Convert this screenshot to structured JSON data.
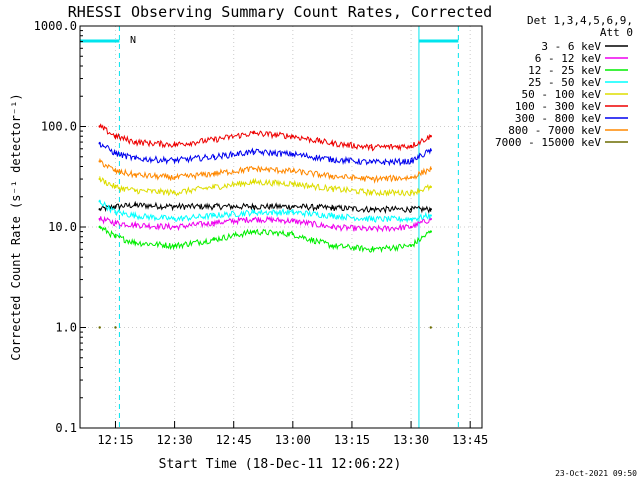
{
  "chart_data": {
    "type": "line",
    "title": "RHESSI Observing Summary Count Rates, Corrected",
    "xlabel": "Start Time (18-Dec-11 12:06:22)",
    "ylabel": "Corrected Count Rate (s⁻¹ detector⁻¹)",
    "y_scale": "log",
    "ylim": [
      0.1,
      1000
    ],
    "y_ticks": [
      0.1,
      1,
      10,
      100,
      1000
    ],
    "y_tick_labels": [
      "0.1",
      "1.0",
      "10.0",
      "100.0",
      "1000.0"
    ],
    "xlim": [
      "12:06",
      "13:48"
    ],
    "x_ticks": [
      "12:15",
      "12:30",
      "12:45",
      "13:00",
      "13:15",
      "13:30",
      "13:45"
    ],
    "grid": true,
    "legend_position": "top-right",
    "legend_header": [
      "Det 1,3,4,5,6,9,",
      "Att 0"
    ],
    "footer_timestamp": "23-Oct-2021 09:50",
    "flag_label": "N",
    "flags": {
      "saa_color": "#00e5ee",
      "saa_intervals": [
        [
          "12:06",
          "12:16"
        ],
        [
          "13:32",
          "13:42"
        ]
      ],
      "night_lines": [
        "12:16",
        "13:42"
      ]
    },
    "series": [
      {
        "name": "3 - 6 keV",
        "color": "#000000",
        "x": [
          "12:11",
          "12:15",
          "12:20",
          "12:30",
          "12:40",
          "12:50",
          "13:00",
          "13:10",
          "13:20",
          "13:30",
          "13:35"
        ],
        "y": [
          15,
          16,
          16.5,
          16,
          16,
          16,
          16,
          15.5,
          15,
          15,
          15
        ]
      },
      {
        "name": "6 - 12 keV",
        "color": "#ee00ee",
        "x": [
          "12:11",
          "12:15",
          "12:20",
          "12:30",
          "12:40",
          "12:50",
          "13:00",
          "13:10",
          "13:20",
          "13:30",
          "13:35"
        ],
        "y": [
          12,
          11,
          10.5,
          10,
          11,
          12,
          11.5,
          10,
          9.5,
          10,
          12
        ]
      },
      {
        "name": "12 - 25 keV",
        "color": "#00ee00",
        "x": [
          "12:11",
          "12:15",
          "12:20",
          "12:30",
          "12:40",
          "12:50",
          "13:00",
          "13:10",
          "13:20",
          "13:30",
          "13:35"
        ],
        "y": [
          10,
          8,
          7,
          6.5,
          7.5,
          9,
          8.5,
          6.5,
          6,
          6.5,
          9
        ]
      },
      {
        "name": "25 - 50 keV",
        "color": "#00ffff",
        "x": [
          "12:11",
          "12:15",
          "12:20",
          "12:30",
          "12:40",
          "12:50",
          "13:00",
          "13:10",
          "13:20",
          "13:30",
          "13:35"
        ],
        "y": [
          18,
          14,
          13,
          12,
          13,
          14,
          14,
          13,
          12,
          12,
          13
        ]
      },
      {
        "name": "50 - 100 keV",
        "color": "#dddd00",
        "x": [
          "12:11",
          "12:15",
          "12:20",
          "12:30",
          "12:40",
          "12:50",
          "13:00",
          "13:10",
          "13:20",
          "13:30",
          "13:35"
        ],
        "y": [
          30,
          25,
          23,
          22,
          25,
          28,
          27,
          24,
          22,
          22,
          25
        ]
      },
      {
        "name": "100 - 300 keV",
        "color": "#ee0000",
        "x": [
          "12:11",
          "12:15",
          "12:20",
          "12:30",
          "12:40",
          "12:50",
          "13:00",
          "13:10",
          "13:20",
          "13:30",
          "13:35"
        ],
        "y": [
          100,
          80,
          70,
          66,
          74,
          86,
          80,
          68,
          62,
          64,
          80
        ]
      },
      {
        "name": "300 - 800 keV",
        "color": "#0000ee",
        "x": [
          "12:11",
          "12:15",
          "12:20",
          "12:30",
          "12:40",
          "12:50",
          "13:00",
          "13:10",
          "13:20",
          "13:30",
          "13:35"
        ],
        "y": [
          68,
          54,
          48,
          46,
          50,
          56,
          53,
          47,
          44,
          45,
          58
        ]
      },
      {
        "name": "800 - 7000 keV",
        "color": "#ff8800",
        "x": [
          "12:11",
          "12:15",
          "12:20",
          "12:30",
          "12:40",
          "12:50",
          "13:00",
          "13:10",
          "13:20",
          "13:30",
          "13:35"
        ],
        "y": [
          45,
          36,
          33,
          31,
          34,
          38,
          36,
          32,
          30,
          31,
          38
        ]
      },
      {
        "name": "7000 - 15000 keV",
        "color": "#6b6b00",
        "x": [
          "12:11",
          "12:15",
          "12:20",
          "12:30",
          "12:40",
          "12:50",
          "13:00",
          "13:10",
          "13:20",
          "13:30",
          "13:35"
        ],
        "y": [
          1,
          1,
          null,
          null,
          null,
          null,
          null,
          null,
          null,
          null,
          1
        ]
      }
    ]
  }
}
